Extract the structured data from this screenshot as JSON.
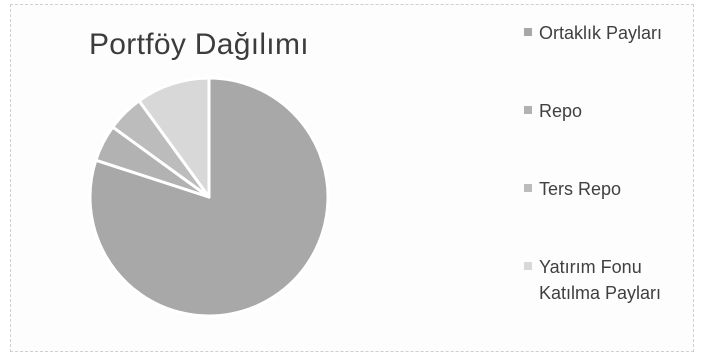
{
  "chart_data": {
    "type": "pie",
    "title": "Portföy Dağılımı",
    "legend_position": "right",
    "categories": [
      "Ortaklık Payları",
      "Repo",
      "Ters Repo",
      "Yatırım Fonu Katılma Payları"
    ],
    "values": [
      80,
      5,
      5,
      10
    ],
    "colors": [
      "#a8a8a8",
      "#b2b2b2",
      "#bcbcbc",
      "#d8d8d8"
    ],
    "legend": [
      {
        "label": "Ortaklık Payları",
        "color": "#a8a8a8"
      },
      {
        "label": "Repo",
        "color": "#b2b2b2"
      },
      {
        "label": "Ters Repo",
        "color": "#bcbcbc"
      },
      {
        "label": "Yatırım Fonu Katılma Payları",
        "color": "#d8d8d8"
      }
    ]
  }
}
